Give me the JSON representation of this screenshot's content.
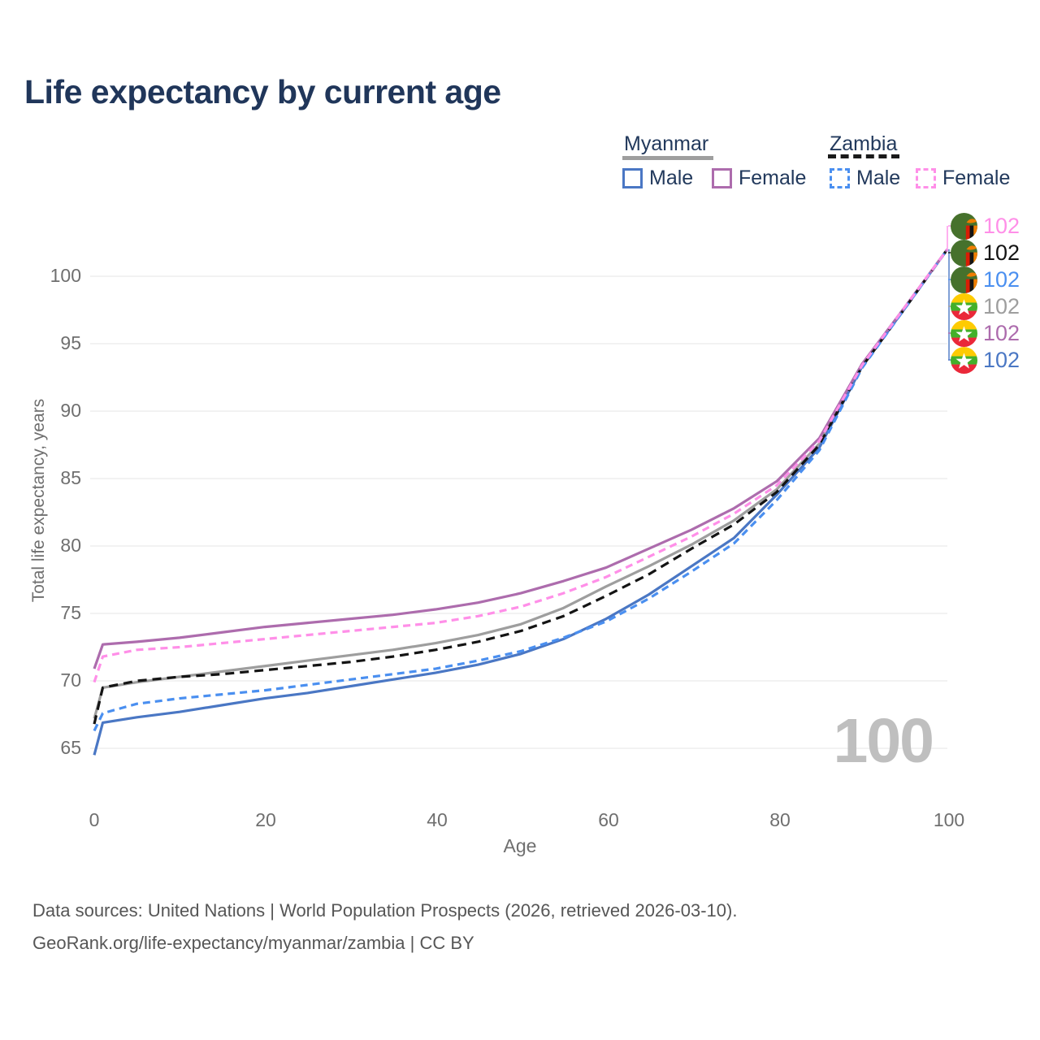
{
  "title": "Life expectancy by current age",
  "legend": {
    "myanmar": {
      "label": "Myanmar",
      "male_label": "Male",
      "female_label": "Female"
    },
    "zambia": {
      "label": "Zambia",
      "male_label": "Male",
      "female_label": "Female"
    }
  },
  "axes": {
    "y_title": "Total life expectancy, years",
    "x_title": "Age",
    "y_ticks": [
      "65",
      "70",
      "75",
      "80",
      "85",
      "90",
      "95",
      "100"
    ],
    "x_ticks": [
      "0",
      "20",
      "40",
      "60",
      "80",
      "100"
    ]
  },
  "chart_data": {
    "type": "line",
    "title": "Life expectancy by current age",
    "xlabel": "Age",
    "ylabel": "Total life expectancy, years",
    "xlim": [
      0,
      100
    ],
    "ylim": [
      63.5,
      103.5
    ],
    "xticks": [
      0,
      20,
      40,
      60,
      80,
      100
    ],
    "yticks": [
      65,
      70,
      75,
      80,
      85,
      90,
      95,
      100
    ],
    "grid": "horizontal-only",
    "legend_position": "top-right",
    "x": [
      0,
      1,
      5,
      10,
      15,
      20,
      25,
      30,
      35,
      40,
      45,
      50,
      55,
      60,
      65,
      70,
      75,
      80,
      85,
      90,
      95,
      100
    ],
    "series": [
      {
        "name": "Myanmar Combined",
        "country": "Myanmar",
        "sex": "combined",
        "color": "#9e9e9e",
        "line_style": "solid",
        "values": [
          67.2,
          69.5,
          69.9,
          70.3,
          70.7,
          71.1,
          71.5,
          71.9,
          72.3,
          72.8,
          73.4,
          74.2,
          75.4,
          77.0,
          78.5,
          80.1,
          81.9,
          84.2,
          87.6,
          93.4,
          97.7,
          102
        ]
      },
      {
        "name": "Myanmar Male",
        "country": "Myanmar",
        "sex": "male",
        "color": "#4a77c4",
        "line_style": "solid",
        "values": [
          64.5,
          66.9,
          67.3,
          67.7,
          68.2,
          68.7,
          69.1,
          69.6,
          70.1,
          70.6,
          71.2,
          72.0,
          73.1,
          74.6,
          76.4,
          78.5,
          80.6,
          83.8,
          87.3,
          93.3,
          97.6,
          102
        ]
      },
      {
        "name": "Myanmar Female",
        "country": "Myanmar",
        "sex": "female",
        "color": "#ad6cad",
        "line_style": "solid",
        "values": [
          70.9,
          72.7,
          72.9,
          73.2,
          73.6,
          74.0,
          74.3,
          74.6,
          74.9,
          75.3,
          75.8,
          76.5,
          77.4,
          78.4,
          79.8,
          81.2,
          82.8,
          84.8,
          88.0,
          93.5,
          97.7,
          102
        ]
      },
      {
        "name": "Zambia Combined",
        "country": "Zambia",
        "sex": "combined",
        "color": "#141414",
        "line_style": "dashed",
        "values": [
          66.8,
          69.5,
          70.0,
          70.3,
          70.5,
          70.8,
          71.1,
          71.4,
          71.8,
          72.3,
          72.9,
          73.7,
          74.8,
          76.3,
          77.9,
          79.8,
          81.6,
          84.0,
          87.5,
          93.3,
          97.6,
          102
        ]
      },
      {
        "name": "Zambia Male",
        "country": "Zambia",
        "sex": "male",
        "color": "#4a8ff0",
        "line_style": "dashed",
        "values": [
          66.3,
          67.6,
          68.3,
          68.7,
          69.0,
          69.3,
          69.7,
          70.1,
          70.5,
          70.9,
          71.5,
          72.2,
          73.2,
          74.4,
          76.1,
          78.1,
          80.2,
          83.4,
          87.1,
          93.2,
          97.6,
          102
        ]
      },
      {
        "name": "Zambia Female",
        "country": "Zambia",
        "sex": "female",
        "color": "#ff8fe8",
        "line_style": "dashed",
        "values": [
          69.9,
          71.8,
          72.3,
          72.5,
          72.8,
          73.1,
          73.4,
          73.7,
          74.0,
          74.3,
          74.8,
          75.5,
          76.5,
          77.7,
          79.2,
          80.7,
          82.4,
          84.5,
          87.8,
          93.4,
          97.7,
          102
        ]
      }
    ],
    "annotations": {
      "hover_age_watermark": "100",
      "end_age": 100,
      "end_value_all_series": 102
    }
  },
  "endpoint_labels": [
    {
      "flag": "zambia",
      "series": "Zambia Female",
      "value": "102",
      "color": "#ff8fe8"
    },
    {
      "flag": "zambia",
      "series": "Zambia Combined",
      "value": "102",
      "color": "#141414"
    },
    {
      "flag": "zambia",
      "series": "Zambia Male",
      "value": "102",
      "color": "#4a8ff0"
    },
    {
      "flag": "myanmar",
      "series": "Myanmar Combined",
      "value": "102",
      "color": "#9e9e9e"
    },
    {
      "flag": "myanmar",
      "series": "Myanmar Female",
      "value": "102",
      "color": "#ad6cad"
    },
    {
      "flag": "myanmar",
      "series": "Myanmar Male",
      "value": "102",
      "color": "#4a77c4"
    }
  ],
  "watermark": "100",
  "footer": {
    "line1": "Data sources: United Nations | World Population Prospects (2026, retrieved 2026-03-10).",
    "line2": "GeoRank.org/life-expectancy/myanmar/zambia | CC BY"
  },
  "colors": {
    "myanmar_underline": "#9e9e9e",
    "zambia_underline": "#1a1a1a",
    "myanmar_male": "#4a77c4",
    "myanmar_female": "#ad6cad",
    "zambia_male": "#4a8ff0",
    "zambia_female": "#ff8fe8",
    "grid": "#ebebeb",
    "title_text": "#20365a",
    "axis_text": "#6f6f6f",
    "watermark": "#bfbfbf",
    "footer_text": "#565656"
  }
}
